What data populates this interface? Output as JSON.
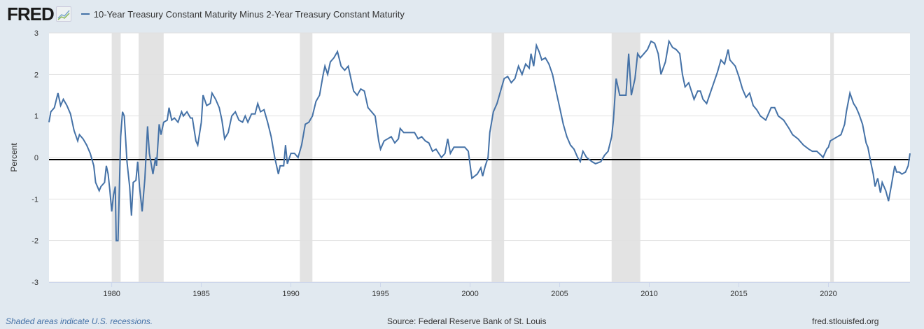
{
  "header": {
    "logo": "FRED",
    "legend_label": "10-Year Treasury Constant Maturity Minus 2-Year Treasury Constant Maturity",
    "line_color": "#4572a7"
  },
  "footer": {
    "note": "Shaded areas indicate U.S. recessions.",
    "source": "Source: Federal Reserve Bank of St. Louis",
    "site": "fred.stlouisfed.org"
  },
  "chart_data": {
    "type": "line",
    "title": "10-Year Treasury Constant Maturity Minus 2-Year Treasury Constant Maturity",
    "xlabel": "",
    "ylabel": "Percent",
    "xlim": [
      1976.5,
      2024.55
    ],
    "ylim": [
      -3,
      3
    ],
    "yticks": [
      "3",
      "2",
      "1",
      "0",
      "-1",
      "-2",
      "-3"
    ],
    "xticks": [
      "1980",
      "1985",
      "1990",
      "1995",
      "2000",
      "2005",
      "2010",
      "2015",
      "2020"
    ],
    "grid": true,
    "recessions": [
      [
        1980.0,
        1980.5
      ],
      [
        1981.5,
        1982.9
      ],
      [
        1990.5,
        1991.2
      ],
      [
        2001.2,
        2001.9
      ],
      [
        2007.9,
        2009.5
      ],
      [
        2020.1,
        2020.3
      ]
    ],
    "series": [
      {
        "name": "10-Year Treasury Constant Maturity Minus 2-Year Treasury Constant Maturity",
        "points": [
          [
            1976.5,
            0.85
          ],
          [
            1976.6,
            1.1
          ],
          [
            1976.8,
            1.2
          ],
          [
            1977.0,
            1.55
          ],
          [
            1977.15,
            1.25
          ],
          [
            1977.3,
            1.4
          ],
          [
            1977.5,
            1.25
          ],
          [
            1977.7,
            1.05
          ],
          [
            1977.9,
            0.65
          ],
          [
            1978.1,
            0.4
          ],
          [
            1978.2,
            0.55
          ],
          [
            1978.4,
            0.45
          ],
          [
            1978.6,
            0.3
          ],
          [
            1978.8,
            0.1
          ],
          [
            1979.0,
            -0.2
          ],
          [
            1979.1,
            -0.6
          ],
          [
            1979.3,
            -0.8
          ],
          [
            1979.4,
            -0.7
          ],
          [
            1979.6,
            -0.6
          ],
          [
            1979.7,
            -0.2
          ],
          [
            1979.8,
            -0.4
          ],
          [
            1979.9,
            -0.8
          ],
          [
            1980.0,
            -1.3
          ],
          [
            1980.1,
            -0.9
          ],
          [
            1980.2,
            -0.7
          ],
          [
            1980.25,
            -2.0
          ],
          [
            1980.35,
            -2.0
          ],
          [
            1980.5,
            0.5
          ],
          [
            1980.6,
            1.1
          ],
          [
            1980.7,
            1.0
          ],
          [
            1980.85,
            -0.1
          ],
          [
            1981.0,
            -0.7
          ],
          [
            1981.1,
            -1.4
          ],
          [
            1981.2,
            -0.6
          ],
          [
            1981.35,
            -0.55
          ],
          [
            1981.45,
            -0.1
          ],
          [
            1981.55,
            -0.7
          ],
          [
            1981.7,
            -1.3
          ],
          [
            1981.85,
            -0.5
          ],
          [
            1982.0,
            0.75
          ],
          [
            1982.1,
            0.1
          ],
          [
            1982.3,
            -0.4
          ],
          [
            1982.45,
            0.0
          ],
          [
            1982.5,
            -0.2
          ],
          [
            1982.65,
            0.8
          ],
          [
            1982.75,
            0.55
          ],
          [
            1982.9,
            0.85
          ],
          [
            1983.1,
            0.9
          ],
          [
            1983.2,
            1.2
          ],
          [
            1983.35,
            0.9
          ],
          [
            1983.5,
            0.95
          ],
          [
            1983.7,
            0.85
          ],
          [
            1983.9,
            1.1
          ],
          [
            1984.0,
            1.0
          ],
          [
            1984.2,
            1.1
          ],
          [
            1984.4,
            0.95
          ],
          [
            1984.5,
            0.95
          ],
          [
            1984.7,
            0.4
          ],
          [
            1984.8,
            0.3
          ],
          [
            1985.0,
            0.85
          ],
          [
            1985.1,
            1.5
          ],
          [
            1985.3,
            1.25
          ],
          [
            1985.5,
            1.3
          ],
          [
            1985.6,
            1.55
          ],
          [
            1985.8,
            1.4
          ],
          [
            1986.0,
            1.2
          ],
          [
            1986.15,
            0.9
          ],
          [
            1986.3,
            0.45
          ],
          [
            1986.5,
            0.6
          ],
          [
            1986.7,
            1.0
          ],
          [
            1986.9,
            1.1
          ],
          [
            1987.1,
            0.9
          ],
          [
            1987.3,
            0.85
          ],
          [
            1987.45,
            1.0
          ],
          [
            1987.6,
            0.85
          ],
          [
            1987.8,
            1.05
          ],
          [
            1988.0,
            1.05
          ],
          [
            1988.15,
            1.3
          ],
          [
            1988.3,
            1.1
          ],
          [
            1988.5,
            1.15
          ],
          [
            1988.7,
            0.85
          ],
          [
            1988.9,
            0.5
          ],
          [
            1989.1,
            0.0
          ],
          [
            1989.3,
            -0.4
          ],
          [
            1989.4,
            -0.2
          ],
          [
            1989.6,
            -0.2
          ],
          [
            1989.7,
            0.3
          ],
          [
            1989.8,
            -0.15
          ],
          [
            1990.0,
            0.1
          ],
          [
            1990.2,
            0.1
          ],
          [
            1990.4,
            0.0
          ],
          [
            1990.6,
            0.3
          ],
          [
            1990.8,
            0.8
          ],
          [
            1991.0,
            0.85
          ],
          [
            1991.2,
            1.0
          ],
          [
            1991.4,
            1.35
          ],
          [
            1991.6,
            1.5
          ],
          [
            1991.8,
            2.0
          ],
          [
            1991.9,
            2.2
          ],
          [
            1992.05,
            2.0
          ],
          [
            1992.2,
            2.3
          ],
          [
            1992.4,
            2.4
          ],
          [
            1992.6,
            2.55
          ],
          [
            1992.8,
            2.2
          ],
          [
            1993.0,
            2.1
          ],
          [
            1993.2,
            2.2
          ],
          [
            1993.35,
            1.9
          ],
          [
            1993.5,
            1.6
          ],
          [
            1993.7,
            1.5
          ],
          [
            1993.9,
            1.65
          ],
          [
            1994.1,
            1.6
          ],
          [
            1994.3,
            1.2
          ],
          [
            1994.5,
            1.1
          ],
          [
            1994.7,
            1.0
          ],
          [
            1994.9,
            0.4
          ],
          [
            1995.0,
            0.2
          ],
          [
            1995.2,
            0.4
          ],
          [
            1995.4,
            0.45
          ],
          [
            1995.6,
            0.5
          ],
          [
            1995.8,
            0.35
          ],
          [
            1996.0,
            0.45
          ],
          [
            1996.1,
            0.7
          ],
          [
            1996.3,
            0.6
          ],
          [
            1996.6,
            0.6
          ],
          [
            1996.9,
            0.6
          ],
          [
            1997.1,
            0.45
          ],
          [
            1997.3,
            0.5
          ],
          [
            1997.5,
            0.4
          ],
          [
            1997.7,
            0.35
          ],
          [
            1997.9,
            0.15
          ],
          [
            1998.1,
            0.2
          ],
          [
            1998.4,
            0.0
          ],
          [
            1998.6,
            0.1
          ],
          [
            1998.75,
            0.45
          ],
          [
            1998.9,
            0.1
          ],
          [
            1999.1,
            0.25
          ],
          [
            1999.4,
            0.25
          ],
          [
            1999.7,
            0.25
          ],
          [
            1999.9,
            0.15
          ],
          [
            2000.1,
            -0.5
          ],
          [
            2000.4,
            -0.4
          ],
          [
            2000.6,
            -0.25
          ],
          [
            2000.7,
            -0.45
          ],
          [
            2000.85,
            -0.2
          ],
          [
            2001.0,
            0.0
          ],
          [
            2001.1,
            0.6
          ],
          [
            2001.3,
            1.1
          ],
          [
            2001.5,
            1.3
          ],
          [
            2001.7,
            1.6
          ],
          [
            2001.9,
            1.9
          ],
          [
            2002.1,
            1.95
          ],
          [
            2002.3,
            1.8
          ],
          [
            2002.5,
            1.9
          ],
          [
            2002.7,
            2.2
          ],
          [
            2002.9,
            2.0
          ],
          [
            2003.1,
            2.25
          ],
          [
            2003.3,
            2.15
          ],
          [
            2003.4,
            2.5
          ],
          [
            2003.55,
            2.2
          ],
          [
            2003.7,
            2.7
          ],
          [
            2003.85,
            2.55
          ],
          [
            2004.0,
            2.35
          ],
          [
            2004.2,
            2.4
          ],
          [
            2004.4,
            2.25
          ],
          [
            2004.6,
            2.0
          ],
          [
            2004.8,
            1.6
          ],
          [
            2005.0,
            1.2
          ],
          [
            2005.2,
            0.8
          ],
          [
            2005.4,
            0.5
          ],
          [
            2005.6,
            0.3
          ],
          [
            2005.8,
            0.2
          ],
          [
            2006.0,
            0.0
          ],
          [
            2006.15,
            -0.1
          ],
          [
            2006.3,
            0.15
          ],
          [
            2006.5,
            0.0
          ],
          [
            2006.8,
            -0.1
          ],
          [
            2007.0,
            -0.15
          ],
          [
            2007.3,
            -0.1
          ],
          [
            2007.5,
            0.05
          ],
          [
            2007.7,
            0.15
          ],
          [
            2007.9,
            0.5
          ],
          [
            2008.0,
            0.9
          ],
          [
            2008.15,
            1.9
          ],
          [
            2008.35,
            1.5
          ],
          [
            2008.5,
            1.5
          ],
          [
            2008.7,
            1.5
          ],
          [
            2008.85,
            2.5
          ],
          [
            2009.0,
            1.5
          ],
          [
            2009.2,
            1.9
          ],
          [
            2009.35,
            2.5
          ],
          [
            2009.5,
            2.4
          ],
          [
            2009.7,
            2.5
          ],
          [
            2009.9,
            2.6
          ],
          [
            2010.1,
            2.8
          ],
          [
            2010.3,
            2.75
          ],
          [
            2010.5,
            2.5
          ],
          [
            2010.65,
            2.0
          ],
          [
            2010.9,
            2.3
          ],
          [
            2011.1,
            2.8
          ],
          [
            2011.3,
            2.65
          ],
          [
            2011.5,
            2.6
          ],
          [
            2011.7,
            2.5
          ],
          [
            2011.85,
            2.0
          ],
          [
            2012.0,
            1.7
          ],
          [
            2012.2,
            1.8
          ],
          [
            2012.35,
            1.6
          ],
          [
            2012.5,
            1.4
          ],
          [
            2012.7,
            1.6
          ],
          [
            2012.85,
            1.6
          ],
          [
            2013.0,
            1.4
          ],
          [
            2013.2,
            1.3
          ],
          [
            2013.4,
            1.55
          ],
          [
            2013.6,
            1.8
          ],
          [
            2013.8,
            2.05
          ],
          [
            2014.0,
            2.35
          ],
          [
            2014.2,
            2.25
          ],
          [
            2014.4,
            2.6
          ],
          [
            2014.5,
            2.35
          ],
          [
            2014.8,
            2.2
          ],
          [
            2015.0,
            1.95
          ],
          [
            2015.2,
            1.65
          ],
          [
            2015.4,
            1.45
          ],
          [
            2015.6,
            1.55
          ],
          [
            2015.8,
            1.25
          ],
          [
            2016.0,
            1.15
          ],
          [
            2016.2,
            1.0
          ],
          [
            2016.5,
            0.9
          ],
          [
            2016.8,
            1.2
          ],
          [
            2017.0,
            1.2
          ],
          [
            2017.2,
            1.0
          ],
          [
            2017.5,
            0.9
          ],
          [
            2017.8,
            0.7
          ],
          [
            2018.0,
            0.55
          ],
          [
            2018.3,
            0.45
          ],
          [
            2018.6,
            0.3
          ],
          [
            2018.9,
            0.2
          ],
          [
            2019.1,
            0.15
          ],
          [
            2019.35,
            0.15
          ],
          [
            2019.6,
            0.05
          ],
          [
            2019.7,
            0.0
          ],
          [
            2019.9,
            0.2
          ],
          [
            2020.0,
            0.25
          ],
          [
            2020.1,
            0.4
          ],
          [
            2020.3,
            0.45
          ],
          [
            2020.5,
            0.5
          ],
          [
            2020.7,
            0.55
          ],
          [
            2020.9,
            0.8
          ],
          [
            2021.0,
            1.1
          ],
          [
            2021.2,
            1.55
          ],
          [
            2021.4,
            1.3
          ],
          [
            2021.55,
            1.2
          ],
          [
            2021.7,
            1.05
          ],
          [
            2021.9,
            0.8
          ],
          [
            2022.1,
            0.35
          ],
          [
            2022.2,
            0.25
          ],
          [
            2022.4,
            -0.2
          ],
          [
            2022.5,
            -0.4
          ],
          [
            2022.6,
            -0.7
          ],
          [
            2022.75,
            -0.5
          ],
          [
            2022.9,
            -0.85
          ],
          [
            2023.0,
            -0.6
          ],
          [
            2023.2,
            -0.8
          ],
          [
            2023.35,
            -1.05
          ],
          [
            2023.5,
            -0.7
          ],
          [
            2023.7,
            -0.2
          ],
          [
            2023.8,
            -0.35
          ],
          [
            2023.95,
            -0.35
          ],
          [
            2024.1,
            -0.4
          ],
          [
            2024.3,
            -0.35
          ],
          [
            2024.45,
            -0.2
          ],
          [
            2024.55,
            0.1
          ]
        ]
      }
    ]
  }
}
